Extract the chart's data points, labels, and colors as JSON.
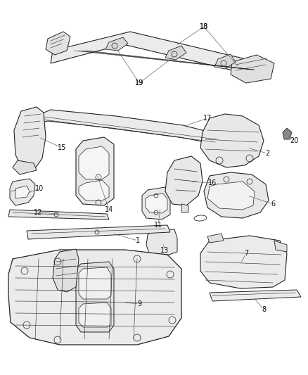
{
  "background_color": "#ffffff",
  "line_color": "#222222",
  "label_color": "#222222",
  "fig_width": 4.38,
  "fig_height": 5.33,
  "dpi": 100
}
